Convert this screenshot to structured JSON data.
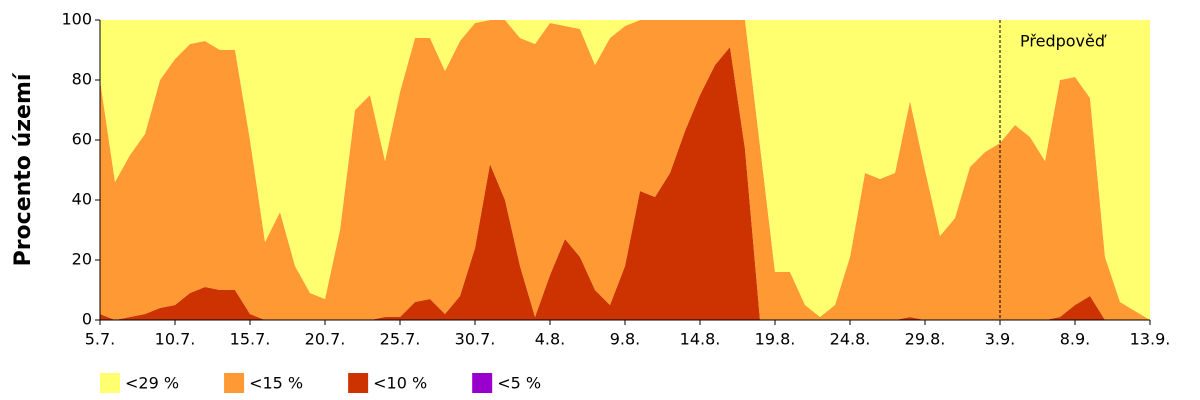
{
  "chart_data": {
    "type": "stacked-area",
    "y_label": "Procento území",
    "annotation": {
      "text": "Předpověď",
      "at": "3.9."
    },
    "categories": [
      "5.7.",
      null,
      null,
      null,
      null,
      "10.7.",
      null,
      null,
      null,
      null,
      "15.7.",
      null,
      null,
      null,
      null,
      "20.7.",
      null,
      null,
      null,
      null,
      "25.7.",
      null,
      null,
      null,
      null,
      "30.7.",
      null,
      null,
      null,
      null,
      "4.8.",
      null,
      null,
      null,
      null,
      "9.8.",
      null,
      null,
      null,
      null,
      "14.8.",
      null,
      null,
      null,
      null,
      "19.8.",
      null,
      null,
      null,
      null,
      "24.8.",
      null,
      null,
      null,
      null,
      "29.8.",
      null,
      null,
      null,
      null,
      "3.9.",
      null,
      null,
      null,
      null,
      "8.9.",
      null,
      null,
      null,
      null,
      "13.9."
    ],
    "series": [
      {
        "name": "<29 %",
        "color": "#ffff70",
        "values": [
          20,
          54,
          45,
          38,
          20,
          13,
          8,
          7,
          10,
          10,
          40,
          74,
          64,
          82,
          91,
          93,
          70,
          30,
          25,
          47,
          24,
          6,
          6,
          17,
          7,
          1,
          0,
          0,
          6,
          8,
          1,
          2,
          3,
          15,
          6,
          2,
          0,
          0,
          0,
          0,
          0,
          0,
          0,
          0,
          42,
          84,
          84,
          95,
          99,
          95,
          79,
          51,
          53,
          51,
          27,
          50,
          72,
          66,
          49,
          44,
          41,
          35,
          39,
          47,
          20,
          19,
          26,
          79,
          94,
          97,
          100
        ]
      },
      {
        "name": "<15 %",
        "color": "#ff9933",
        "values": [
          78,
          46,
          54,
          60,
          76,
          82,
          83,
          82,
          80,
          80,
          58,
          26,
          36,
          18,
          9,
          7,
          30,
          70,
          75,
          52,
          75,
          88,
          87,
          81,
          85,
          75,
          48,
          60,
          76,
          91,
          84,
          71,
          76,
          75,
          89,
          80,
          57,
          59,
          51,
          37,
          25,
          15,
          9,
          43,
          58,
          16,
          16,
          5,
          1,
          5,
          21,
          49,
          47,
          49,
          72,
          50,
          28,
          34,
          51,
          56,
          59,
          65,
          61,
          53,
          79,
          76,
          66,
          21,
          6,
          3,
          0
        ]
      },
      {
        "name": "<10 %",
        "color": "#cc3300",
        "values": [
          2,
          0,
          1,
          2,
          4,
          5,
          9,
          11,
          10,
          10,
          2,
          0,
          0,
          0,
          0,
          0,
          0,
          0,
          0,
          1,
          1,
          6,
          7,
          2,
          8,
          24,
          52,
          40,
          18,
          1,
          15,
          27,
          21,
          10,
          5,
          18,
          43,
          41,
          49,
          63,
          75,
          85,
          91,
          57,
          0,
          0,
          0,
          0,
          0,
          0,
          0,
          0,
          0,
          0,
          1,
          0,
          0,
          0,
          0,
          0,
          0,
          0,
          0,
          0,
          1,
          5,
          8,
          0,
          0,
          0,
          0
        ]
      },
      {
        "name": "<5 %",
        "color": "#9900cc",
        "values": [
          0,
          0,
          0,
          0,
          0,
          0,
          0,
          0,
          0,
          0,
          0,
          0,
          0,
          0,
          0,
          0,
          0,
          0,
          0,
          0,
          0,
          0,
          0,
          0,
          0,
          0,
          0,
          0,
          0,
          0,
          0,
          0,
          0,
          0,
          0,
          0,
          0,
          0,
          0,
          0,
          0,
          0,
          0,
          0,
          0,
          0,
          0,
          0,
          0,
          0,
          0,
          0,
          0,
          0,
          0,
          0,
          0,
          0,
          0,
          0,
          0,
          0,
          0,
          0,
          0,
          0,
          0,
          0,
          0,
          0,
          0
        ]
      }
    ],
    "ylim": [
      0,
      100
    ],
    "yticks": [
      0,
      20,
      40,
      60,
      80,
      100
    ],
    "grid": false,
    "legend": "bottom"
  }
}
